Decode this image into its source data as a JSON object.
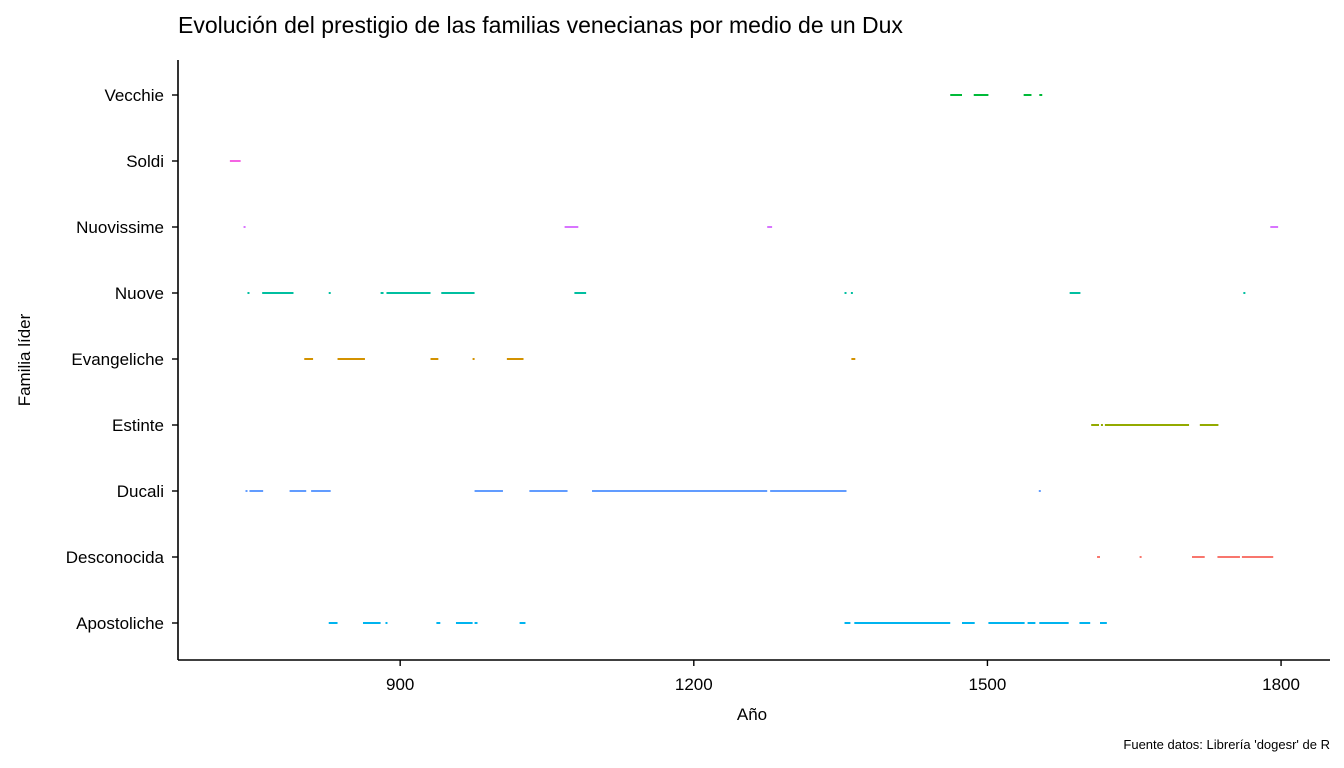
{
  "title": "Evolución del prestigio de las familias venecianas por medio de un Dux",
  "caption": "Fuente datos: Librería 'dogesr' de R",
  "chart_data": {
    "type": "segments",
    "title": "Evolución del prestigio de las familias venecianas por medio de un Dux",
    "xlabel": "Año",
    "ylabel": "Familia líder",
    "xlim": [
      673,
      1850
    ],
    "xticks": [
      900,
      1200,
      1500,
      1800
    ],
    "grid": false,
    "legend": "none",
    "categories": [
      "Apostoliche",
      "Desconocida",
      "Ducali",
      "Estinte",
      "Evangeliche",
      "Nuove",
      "Nuovissime",
      "Soldi",
      "Vecchie"
    ],
    "series": [
      {
        "category": "Apostoliche",
        "color": "#00B4EF",
        "segments": [
          [
            827,
            836
          ],
          [
            862,
            880
          ],
          [
            885,
            887
          ],
          [
            937,
            941
          ],
          [
            957,
            974
          ],
          [
            976,
            979
          ],
          [
            1022,
            1028
          ],
          [
            1354,
            1360
          ],
          [
            1364,
            1462
          ],
          [
            1474,
            1487
          ],
          [
            1501,
            1538
          ],
          [
            1541,
            1549
          ],
          [
            1553,
            1583
          ],
          [
            1594,
            1605
          ],
          [
            1615,
            1622
          ]
        ]
      },
      {
        "category": "Desconocida",
        "color": "#F8766D",
        "segments": [
          [
            1612,
            1615
          ],
          [
            1656,
            1657
          ],
          [
            1709,
            1722
          ],
          [
            1735,
            1758
          ],
          [
            1760,
            1792
          ]
        ]
      },
      {
        "category": "Ducali",
        "color": "#619CFF",
        "segments": [
          [
            742,
            744
          ],
          [
            746,
            760
          ],
          [
            787,
            804
          ],
          [
            809,
            829
          ],
          [
            976,
            1005
          ],
          [
            1032,
            1071
          ],
          [
            1096,
            1275
          ],
          [
            1278,
            1356
          ],
          [
            1553,
            1554
          ]
        ]
      },
      {
        "category": "Estinte",
        "color": "#93AA00",
        "segments": [
          [
            1606,
            1614
          ],
          [
            1616,
            1618
          ],
          [
            1620,
            1706
          ],
          [
            1717,
            1736
          ]
        ]
      },
      {
        "category": "Evangeliche",
        "color": "#D39200",
        "segments": [
          [
            802,
            811
          ],
          [
            836,
            864
          ],
          [
            931,
            939
          ],
          [
            974,
            976
          ],
          [
            1009,
            1026
          ],
          [
            1361,
            1365
          ]
        ]
      },
      {
        "category": "Nuove",
        "color": "#00BFA0",
        "segments": [
          [
            744,
            746
          ],
          [
            759,
            791
          ],
          [
            827,
            829
          ],
          [
            880,
            883
          ],
          [
            886,
            931
          ],
          [
            942,
            976
          ],
          [
            1078,
            1090
          ],
          [
            1354,
            1356
          ],
          [
            1361,
            1362
          ],
          [
            1584,
            1595
          ],
          [
            1762,
            1763
          ]
        ]
      },
      {
        "category": "Nuovissime",
        "color": "#D874FF",
        "segments": [
          [
            740,
            742
          ],
          [
            1068,
            1082
          ],
          [
            1275,
            1280
          ],
          [
            1789,
            1797
          ]
        ]
      },
      {
        "category": "Soldi",
        "color": "#F564E3",
        "segments": [
          [
            726,
            737
          ]
        ]
      },
      {
        "category": "Vecchie",
        "color": "#00BA38",
        "segments": [
          [
            1462,
            1474
          ],
          [
            1486,
            1501
          ],
          [
            1537,
            1545
          ],
          [
            1553,
            1556
          ]
        ]
      }
    ]
  }
}
